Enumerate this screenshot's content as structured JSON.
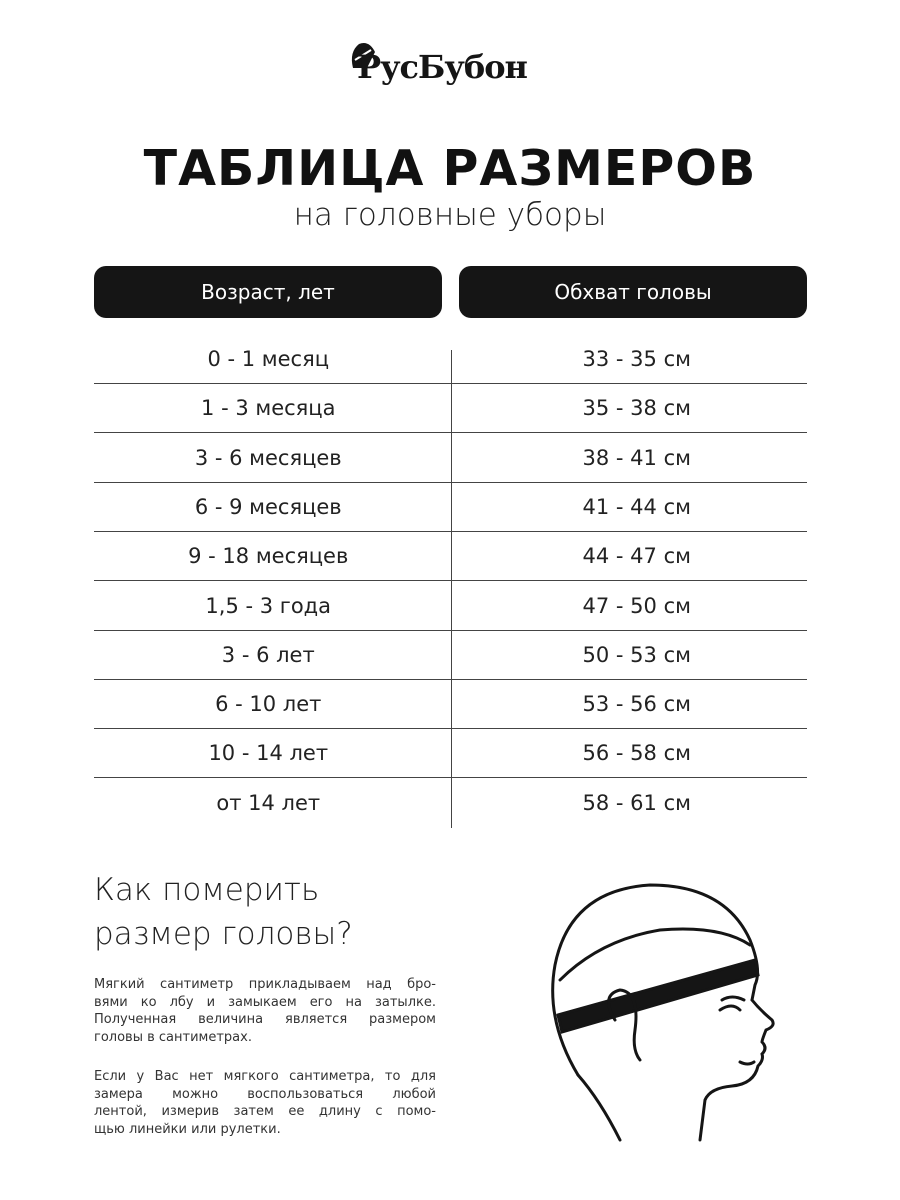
{
  "brand": {
    "logo_text": "РусБубон"
  },
  "title": "ТАБЛИЦА РАЗМЕРОВ",
  "subtitle": "на головные уборы",
  "table": {
    "headers": [
      "Возраст, лет",
      "Обхват головы"
    ],
    "rows": [
      [
        "0 - 1 месяц",
        "33 - 35 см"
      ],
      [
        "1 - 3 месяца",
        "35 - 38 см"
      ],
      [
        "3 - 6 месяцев",
        "38 - 41 см"
      ],
      [
        "6 - 9 месяцев",
        "41 - 44 см"
      ],
      [
        "9 - 18 месяцев",
        "44 - 47 см"
      ],
      [
        "1,5 - 3 года",
        "47 - 50 см"
      ],
      [
        "3 - 6 лет",
        "50 - 53 см"
      ],
      [
        "6 - 10 лет",
        "53 - 56 см"
      ],
      [
        "10 - 14 лет",
        "56 - 58 см"
      ],
      [
        "от 14 лет",
        "58 - 61 см"
      ]
    ]
  },
  "how_to": {
    "heading_lines": [
      "Как померить",
      "размер головы?"
    ],
    "paragraph1_lines": [
      "Мягкий сантиметр прикладываем над бро-",
      "вями ко лбу и замыкаем его на затылке.",
      "Полученная величина является размером",
      "головы в сантиметрах."
    ],
    "paragraph2_lines": [
      "Если у Вас нет мягкого сантиметра, то для",
      "замера можно воспользоваться любой",
      "лентой, измерив затем ее длину с помо-",
      "щью линейки или рулетки."
    ]
  }
}
